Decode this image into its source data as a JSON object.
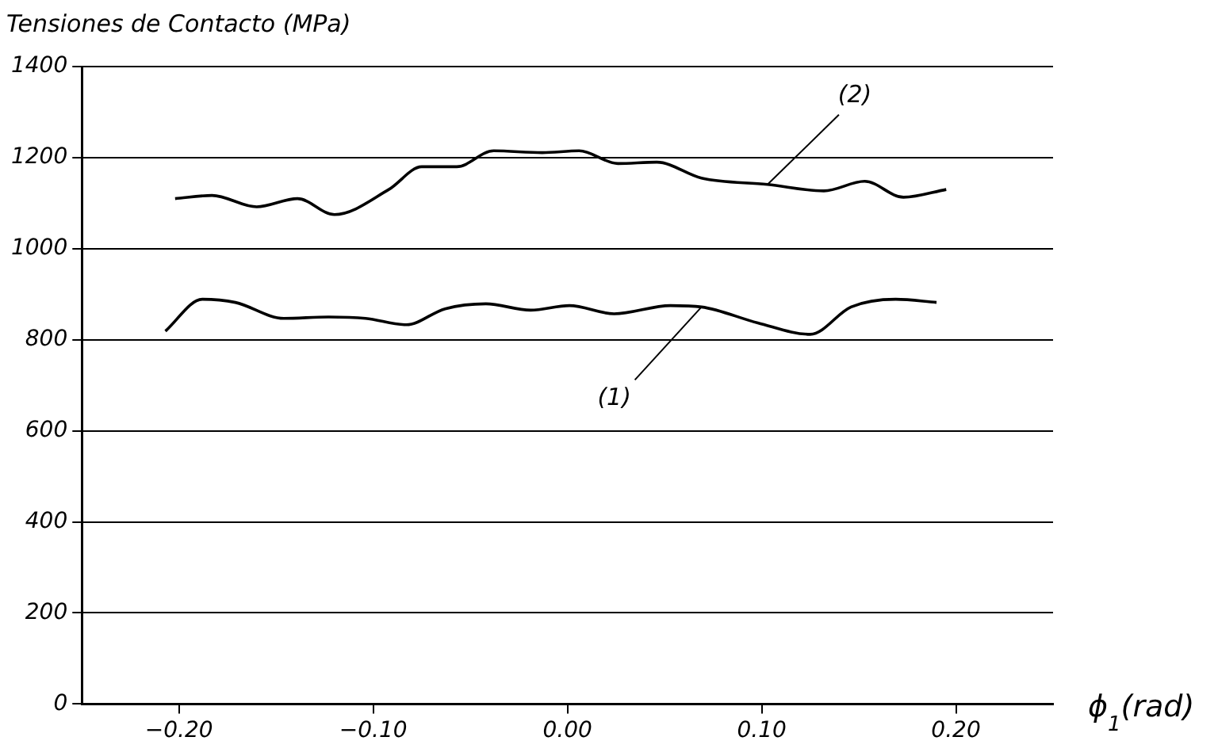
{
  "chart_data": {
    "type": "line",
    "title": "Tensiones de Contacto (MPa)",
    "xlabel": "ϕ$_{1}$(rad)",
    "xlim": [
      -0.25,
      0.25
    ],
    "xticks": [
      {
        "value": -0.2,
        "label": "−0.20"
      },
      {
        "value": -0.1,
        "label": "−0.10"
      },
      {
        "value": 0,
        "label": "0.00"
      },
      {
        "value": 0.1,
        "label": "0.10"
      },
      {
        "value": 0.2,
        "label": "0.20"
      }
    ],
    "ylim": [
      0,
      1400
    ],
    "yticks": [
      0,
      200,
      400,
      600,
      800,
      1000,
      1200,
      1400
    ],
    "grid": "y",
    "legend": false,
    "marker": "none",
    "line_style": "solid",
    "series": [
      {
        "color": "#000000",
        "x": [
          -0.207,
          -0.188,
          -0.171,
          -0.146,
          -0.123,
          -0.104,
          -0.083,
          -0.063,
          -0.042,
          -0.019,
          0.001,
          0.024,
          0.053,
          0.069,
          0.098,
          0.125,
          0.146,
          0.169,
          0.19
        ],
        "values": [
          819,
          889,
          882,
          847,
          850,
          847,
          833,
          868,
          879,
          865,
          875,
          857,
          875,
          872,
          837,
          812,
          872,
          889,
          882
        ]
      },
      {
        "color": "#000000",
        "x": [
          -0.202,
          -0.183,
          -0.16,
          -0.139,
          -0.12,
          -0.092,
          -0.075,
          -0.057,
          -0.038,
          -0.013,
          0.006,
          0.026,
          0.046,
          0.069,
          0.103,
          0.132,
          0.153,
          0.173,
          0.195
        ],
        "values": [
          1110,
          1117,
          1092,
          1110,
          1075,
          1130,
          1180,
          1180,
          1215,
          1211,
          1215,
          1187,
          1190,
          1155,
          1141,
          1127,
          1148,
          1113,
          1130
        ]
      }
    ],
    "annotations": [
      {
        "text": "(1)",
        "x": 0.069,
        "y": 872
      },
      {
        "text": "(2)",
        "x": 0.103,
        "y": 1141
      }
    ]
  }
}
